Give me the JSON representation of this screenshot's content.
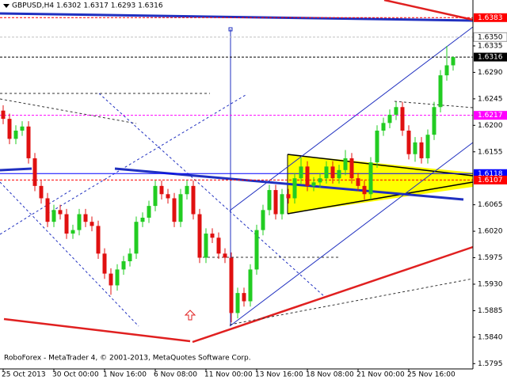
{
  "chart_data": {
    "type": "candlestick",
    "title": "GBPUSD,H4  1.6302 1.6317 1.6293 1.6316",
    "footer": "RoboForex - MetaTrader 4, © 2001-2013, MetaQuotes Software Corp.",
    "bull_color": "#22cc22",
    "bear_color": "#e01010",
    "ylim": [
      1.5786,
      1.6413
    ],
    "yticks": [
      1.6335,
      {
        "value": 1.629,
        "label": "1.6290"
      },
      1.6245,
      {
        "value": 1.62,
        "label": "1.6200"
      },
      1.6155,
      1.6065,
      {
        "value": 1.602,
        "label": "1.6020"
      },
      1.5975,
      {
        "value": 1.593,
        "label": "1.5930"
      },
      1.5885,
      {
        "value": 1.584,
        "label": "1.5840"
      },
      1.5795
    ],
    "levels": [
      {
        "value": 1.6383,
        "color": "#ff0000",
        "text_color": "#ffffff"
      },
      {
        "value": 1.635,
        "label": "1.6350",
        "color": "#c0c0c0",
        "text_color": "#000000"
      },
      {
        "value": 1.6316,
        "color": "#000000",
        "text_color": "#ffffff"
      },
      {
        "value": 1.6217,
        "color": "#ff00ff",
        "text_color": "#ffffff"
      },
      {
        "value": 1.6118,
        "color": "#0000ff",
        "text_color": "#ffffff"
      },
      {
        "value": 1.6107,
        "color": "#ff0000",
        "text_color": "#ffffff"
      }
    ],
    "categories": [
      "25 Oct 2013",
      null,
      null,
      null,
      null,
      null,
      null,
      null,
      "30 Oct 00:00",
      null,
      null,
      null,
      null,
      null,
      null,
      null,
      "1 Nov 16:00",
      null,
      null,
      null,
      null,
      null,
      null,
      null,
      "6 Nov 08:00",
      null,
      null,
      null,
      null,
      null,
      null,
      null,
      "11 Nov 00:00",
      null,
      null,
      null,
      null,
      null,
      null,
      null,
      "13 Nov 16:00",
      null,
      null,
      null,
      null,
      null,
      null,
      null,
      "18 Nov 08:00",
      null,
      null,
      null,
      null,
      null,
      null,
      null,
      "21 Nov 00:00",
      null,
      null,
      null,
      null,
      null,
      null,
      null,
      "25 Nov 16:00",
      null,
      null,
      null,
      null,
      null,
      null,
      null
    ],
    "ohlc": [
      [
        1.6225,
        1.6234,
        1.6202,
        1.6211
      ],
      [
        1.6211,
        1.622,
        1.6168,
        1.6177
      ],
      [
        1.6177,
        1.62,
        1.6168,
        1.6191
      ],
      [
        1.6191,
        1.6207,
        1.6182,
        1.6198
      ],
      [
        1.6198,
        1.6207,
        1.6135,
        1.6144
      ],
      [
        1.6144,
        1.6153,
        1.6088,
        1.6097
      ],
      [
        1.6097,
        1.6106,
        1.6067,
        1.6076
      ],
      [
        1.6076,
        1.6085,
        1.6027,
        1.6036
      ],
      [
        1.6036,
        1.6065,
        1.6027,
        1.6056
      ],
      [
        1.6056,
        1.6065,
        1.604,
        1.6049
      ],
      [
        1.6049,
        1.6058,
        1.6007,
        1.6016
      ],
      [
        1.6016,
        1.6031,
        1.6007,
        1.6022
      ],
      [
        1.6022,
        1.6058,
        1.6013,
        1.6049
      ],
      [
        1.6049,
        1.6058,
        1.6027,
        1.6036
      ],
      [
        1.6036,
        1.6045,
        1.602,
        1.6029
      ],
      [
        1.6029,
        1.6038,
        1.5973,
        1.5982
      ],
      [
        1.5982,
        1.5991,
        1.5939,
        1.5948
      ],
      [
        1.5948,
        1.5957,
        1.5912,
        1.5928
      ],
      [
        1.5928,
        1.5964,
        1.5919,
        1.5955
      ],
      [
        1.5955,
        1.5978,
        1.5946,
        1.5969
      ],
      [
        1.5969,
        1.5991,
        1.596,
        1.5982
      ],
      [
        1.5982,
        1.6045,
        1.5973,
        1.6036
      ],
      [
        1.6036,
        1.6052,
        1.6027,
        1.6043
      ],
      [
        1.6043,
        1.6072,
        1.6034,
        1.6063
      ],
      [
        1.6063,
        1.6106,
        1.6054,
        1.6097
      ],
      [
        1.6097,
        1.6106,
        1.6074,
        1.6083
      ],
      [
        1.6083,
        1.6092,
        1.6067,
        1.6076
      ],
      [
        1.6076,
        1.6085,
        1.6027,
        1.6036
      ],
      [
        1.6036,
        1.6092,
        1.6027,
        1.6083
      ],
      [
        1.6083,
        1.6106,
        1.6074,
        1.6097
      ],
      [
        1.6097,
        1.6106,
        1.604,
        1.6049
      ],
      [
        1.6049,
        1.6058,
        1.5966,
        1.5975
      ],
      [
        1.5975,
        1.6025,
        1.5966,
        1.6016
      ],
      [
        1.6016,
        1.6025,
        1.6,
        1.6009
      ],
      [
        1.6009,
        1.6018,
        1.5973,
        1.5982
      ],
      [
        1.5982,
        1.5991,
        1.5966,
        1.5975
      ],
      [
        1.5975,
        1.5984,
        1.5865,
        1.5881
      ],
      [
        1.5881,
        1.5924,
        1.5872,
        1.5915
      ],
      [
        1.5915,
        1.5924,
        1.5892,
        1.5901
      ],
      [
        1.5901,
        1.5964,
        1.5892,
        1.5955
      ],
      [
        1.5955,
        1.6031,
        1.5946,
        1.6022
      ],
      [
        1.6022,
        1.6065,
        1.6013,
        1.6056
      ],
      [
        1.6056,
        1.6099,
        1.6047,
        1.609
      ],
      [
        1.609,
        1.6099,
        1.604,
        1.6049
      ],
      [
        1.6049,
        1.6092,
        1.604,
        1.6083
      ],
      [
        1.6083,
        1.6092,
        1.6067,
        1.6076
      ],
      [
        1.6076,
        1.6119,
        1.6067,
        1.611
      ],
      [
        1.611,
        1.6145,
        1.6101,
        1.613
      ],
      [
        1.613,
        1.6139,
        1.6088,
        1.6097
      ],
      [
        1.6097,
        1.6112,
        1.6088,
        1.6103
      ],
      [
        1.6103,
        1.6119,
        1.6094,
        1.611
      ],
      [
        1.611,
        1.6139,
        1.6101,
        1.613
      ],
      [
        1.613,
        1.6139,
        1.6101,
        1.611
      ],
      [
        1.611,
        1.6133,
        1.6101,
        1.6124
      ],
      [
        1.6124,
        1.6158,
        1.6115,
        1.6144
      ],
      [
        1.6144,
        1.6153,
        1.6101,
        1.611
      ],
      [
        1.611,
        1.6119,
        1.6088,
        1.6097
      ],
      [
        1.6097,
        1.6106,
        1.6074,
        1.6083
      ],
      [
        1.6083,
        1.6146,
        1.6074,
        1.6137
      ],
      [
        1.6137,
        1.62,
        1.6128,
        1.6191
      ],
      [
        1.6191,
        1.6213,
        1.6182,
        1.6204
      ],
      [
        1.6204,
        1.6227,
        1.6195,
        1.6218
      ],
      [
        1.6218,
        1.624,
        1.6209,
        1.6231
      ],
      [
        1.6231,
        1.624,
        1.6182,
        1.6191
      ],
      [
        1.6191,
        1.62,
        1.6142,
        1.6151
      ],
      [
        1.6151,
        1.618,
        1.6138,
        1.6171
      ],
      [
        1.6171,
        1.618,
        1.6135,
        1.6144
      ],
      [
        1.6144,
        1.6193,
        1.6135,
        1.6184
      ],
      [
        1.6184,
        1.624,
        1.6175,
        1.6231
      ],
      [
        1.6231,
        1.6294,
        1.6222,
        1.6285
      ],
      [
        1.6285,
        1.6335,
        1.6276,
        1.6302
      ],
      [
        1.6302,
        1.6317,
        1.6293,
        1.6316
      ]
    ]
  }
}
